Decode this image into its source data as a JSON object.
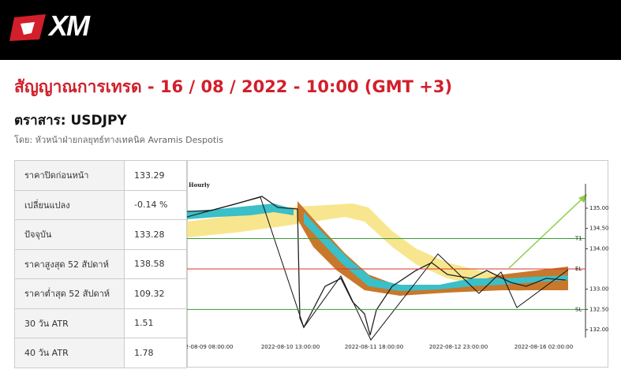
{
  "header": {
    "logo": "XM"
  },
  "title": "สัญญาณการเทรด - 16 / 08 / 2022 - 10:00 (GMT +3)",
  "instrument": "ตราสาร: USDJPY",
  "author": "โดย: หัวหน้าฝ่ายกลยุทธ์ทางเทคนิค Avramis Despotis",
  "table": {
    "rows": [
      [
        "ราคาปิดก่อนหน้า",
        "133.29"
      ],
      [
        "เปลี่ยนแปลง",
        "-0.14 %"
      ],
      [
        "ปัจจุบัน",
        "133.28"
      ],
      [
        "ราคาสูงสุด 52 สัปดาห์",
        "138.58"
      ],
      [
        "ราคาต่ำสุด 52 สัปดาห์",
        "109.32"
      ],
      [
        "30 วัน ATR",
        "1.51"
      ],
      [
        "40 วัน ATR",
        "1.78"
      ]
    ]
  },
  "chart": {
    "label": "Hourly",
    "price_ticks": [
      {
        "value": 135,
        "label": "135.00"
      },
      {
        "value": 134.5,
        "label": "134.50"
      },
      {
        "value": 134,
        "label": "134.00"
      },
      {
        "value": 133,
        "label": "133.00"
      },
      {
        "value": 132.5,
        "label": "132.50"
      },
      {
        "value": 132,
        "label": "132.00"
      }
    ],
    "levels": [
      {
        "label": "T1",
        "value": 134.25,
        "color": "#3a9a3a"
      },
      {
        "label": "EL",
        "value": 133.5,
        "color": "#d9342b"
      },
      {
        "label": "SL",
        "value": 132.5,
        "color": "#3a9a3a"
      }
    ],
    "time_labels": [
      "2-08-09 08:00:00",
      "2022-08-10 13:00:00",
      "2022-08-11 18:00:00",
      "2022-08-12 23:00:00",
      "2022-08-16 02:00:00"
    ]
  }
}
